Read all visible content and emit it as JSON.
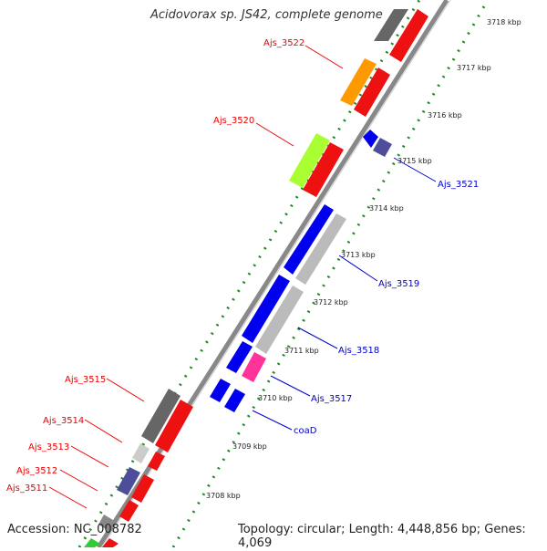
{
  "header": {
    "title": "Acidovorax sp. JS42, complete genome"
  },
  "footer": {
    "accession": "Accession: NC_008782",
    "summary": "Topology: circular; Length: 4,448,856 bp; Genes: 4,069"
  },
  "colors": {
    "forward_label": "#ee0000",
    "reverse_label": "#0000cc",
    "backbone": "#777777",
    "tick": "#228822"
  },
  "scale_ticks": [
    "3708 kbp",
    "3709 kbp",
    "3710 kbp",
    "3711 kbp",
    "3712 kbp",
    "3713 kbp",
    "3714 kbp",
    "3715 kbp",
    "3716 kbp",
    "3717 kbp",
    "3718 kbp"
  ],
  "genes": [
    {
      "label": "Ajs_3522",
      "strand": "forward"
    },
    {
      "label": "Ajs_3520",
      "strand": "forward"
    },
    {
      "label": "Ajs_3515",
      "strand": "forward"
    },
    {
      "label": "Ajs_3514",
      "strand": "forward"
    },
    {
      "label": "Ajs_3513",
      "strand": "forward"
    },
    {
      "label": "Ajs_3512",
      "strand": "forward"
    },
    {
      "label": "Ajs_3511",
      "strand": "forward"
    },
    {
      "label": "Ajs_3521",
      "strand": "reverse"
    },
    {
      "label": "Ajs_3519",
      "strand": "reverse"
    },
    {
      "label": "Ajs_3518",
      "strand": "reverse"
    },
    {
      "label": "Ajs_3517",
      "strand": "reverse"
    },
    {
      "label": "coaD",
      "strand": "reverse"
    }
  ]
}
